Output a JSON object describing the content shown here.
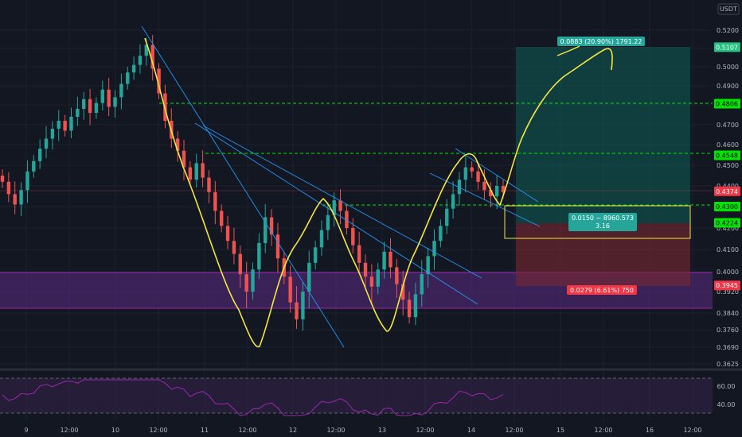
{
  "currency": "USDT",
  "chart_data": {
    "type": "candlestick",
    "y_ticks": [
      0.52,
      0.51,
      0.5,
      0.49,
      0.48,
      0.47,
      0.46,
      0.45,
      0.44,
      0.43,
      0.42,
      0.41,
      0.4,
      0.392,
      0.384,
      0.376,
      0.369,
      0.3625
    ],
    "y_tick_labels": [
      "0.5200",
      "0.5100",
      "0.5000",
      "0.4900",
      "0.4800",
      "0.4700",
      "0.4600",
      "0.4500",
      "0.4400",
      "0.4300",
      "0.4200",
      "0.4100",
      "0.4000",
      "0.3920",
      "0.3840",
      "0.3760",
      "0.3690",
      "0.3625"
    ],
    "x_labels": [
      "9",
      "12:00",
      "10",
      "12:00",
      "11",
      "12:00",
      "12",
      "12:00",
      "13",
      "12:00",
      "14",
      "12:00",
      "15",
      "12:00",
      "16",
      "12:00"
    ],
    "candles_close": [
      0.442,
      0.436,
      0.431,
      0.438,
      0.447,
      0.452,
      0.458,
      0.463,
      0.468,
      0.472,
      0.467,
      0.474,
      0.478,
      0.483,
      0.476,
      0.481,
      0.488,
      0.479,
      0.484,
      0.491,
      0.497,
      0.501,
      0.506,
      0.512,
      0.499,
      0.486,
      0.472,
      0.463,
      0.457,
      0.449,
      0.443,
      0.451,
      0.444,
      0.437,
      0.428,
      0.421,
      0.414,
      0.408,
      0.399,
      0.392,
      0.401,
      0.413,
      0.425,
      0.417,
      0.406,
      0.398,
      0.388,
      0.381,
      0.392,
      0.404,
      0.411,
      0.419,
      0.426,
      0.433,
      0.428,
      0.42,
      0.412,
      0.404,
      0.398,
      0.394,
      0.401,
      0.409,
      0.402,
      0.395,
      0.389,
      0.382,
      0.391,
      0.399,
      0.407,
      0.414,
      0.421,
      0.429,
      0.436,
      0.443,
      0.449,
      0.447,
      0.442,
      0.438,
      0.435,
      0.44,
      0.437
    ],
    "price_levels": [
      {
        "label": "0.5107",
        "value": 0.5107,
        "color": "#26c281"
      },
      {
        "label": "0.4806",
        "value": 0.4806,
        "color": "#00e600"
      },
      {
        "label": "0.4548",
        "value": 0.4548,
        "color": "#00e600"
      },
      {
        "label": "0.4374",
        "value": 0.4374,
        "color": "#f23645"
      },
      {
        "label": "0.4300",
        "value": 0.43,
        "color": "#00e600"
      },
      {
        "label": "0.4224",
        "value": 0.4224,
        "color": "#00e600"
      },
      {
        "label": "0.3945",
        "value": 0.3945,
        "color": "#f23645"
      }
    ],
    "rsi_ticks": [
      "60.00",
      "40.00"
    ]
  },
  "position": {
    "target_label": "0.0883 (20.90%) 1791.22",
    "stop_label": "0.0279 (6.61%) 750",
    "entry_label_line1": "0.0150 ~ 8960.573",
    "entry_label_line2": "3.16"
  }
}
